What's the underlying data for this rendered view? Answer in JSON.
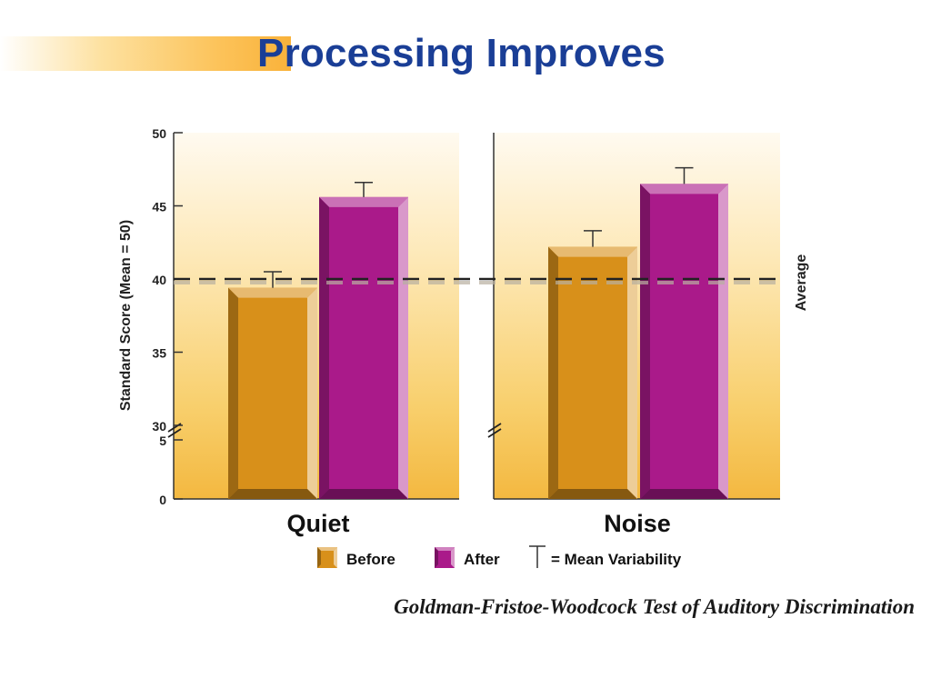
{
  "slide": {
    "title_first": "P",
    "title_rest": "rocessing Improves",
    "caption": "Goldman-Fristoe-Woodcock Test of Auditory Discrimination"
  },
  "chart_data": {
    "type": "bar",
    "ylabel": "Standard Score (Mean = 50)",
    "categories": [
      "Quiet",
      "Noise"
    ],
    "series": [
      {
        "name": "Before",
        "values": [
          39.4,
          42.2
        ],
        "error_top": [
          40.5,
          43.3
        ],
        "color": "#d8901a"
      },
      {
        "name": "After",
        "values": [
          45.6,
          46.5
        ],
        "error_top": [
          46.6,
          47.6
        ],
        "color": "#aa1a8a"
      }
    ],
    "y_ticks": [
      0,
      5,
      30,
      35,
      40,
      45,
      50
    ],
    "y_axis_break": [
      5,
      30
    ],
    "ylim": [
      0,
      50
    ],
    "reference_line": {
      "value": 40,
      "label": "Average"
    },
    "legend": {
      "before": "Before",
      "after": "After",
      "variability": "= Mean Variability",
      "placement": "bottom"
    },
    "grid": false
  }
}
